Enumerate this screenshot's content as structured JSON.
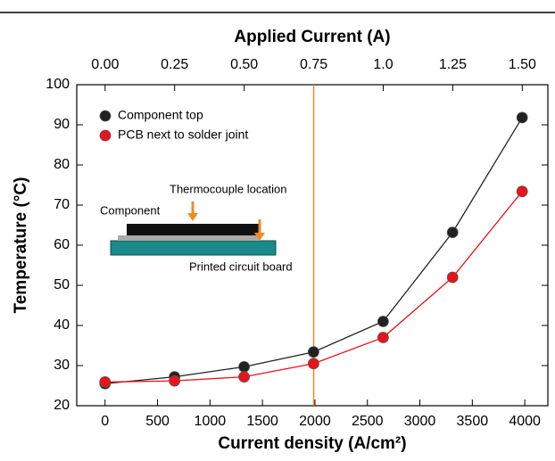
{
  "chart_data": {
    "type": "line",
    "x_label": "Current density (A/cm²)",
    "x2_label": "Applied Current (A)",
    "y_label": "Temperature (°C)",
    "x": [
      0,
      662,
      1325,
      1987,
      2650,
      3312,
      3975
    ],
    "series": [
      {
        "name": "Component top",
        "color": "#222222",
        "values": [
          25.5,
          27.2,
          29.7,
          33.4,
          41.0,
          63.2,
          91.8
        ]
      },
      {
        "name": "PCB next to solder joint",
        "color": "#e8141b",
        "values": [
          25.9,
          26.2,
          27.2,
          30.5,
          37.0,
          52.0,
          73.4
        ]
      }
    ],
    "xlim": [
      -270,
      4220
    ],
    "xticks": [
      0,
      500,
      1000,
      1500,
      2000,
      2500,
      3000,
      3500,
      4000
    ],
    "x2lim": [
      -0.102,
      1.592
    ],
    "x2ticks": [
      {
        "value": 0,
        "label": "0.00"
      },
      0.25,
      {
        "value": 0.5,
        "label": "0.50"
      },
      0.75,
      {
        "value": 1,
        "label": "1.0"
      },
      1.25,
      {
        "value": 1.5,
        "label": "1.50"
      }
    ],
    "ylim": [
      20,
      100
    ],
    "yticks": [
      20,
      30,
      40,
      50,
      60,
      70,
      80,
      90,
      100
    ],
    "grid": false,
    "legend": "upper left",
    "vline_x2": 0.75,
    "vline_color": "#f08a24",
    "inset": {
      "thermocouple": "Thermocouple location",
      "component": "Component",
      "board": "Printed circuit board"
    }
  }
}
